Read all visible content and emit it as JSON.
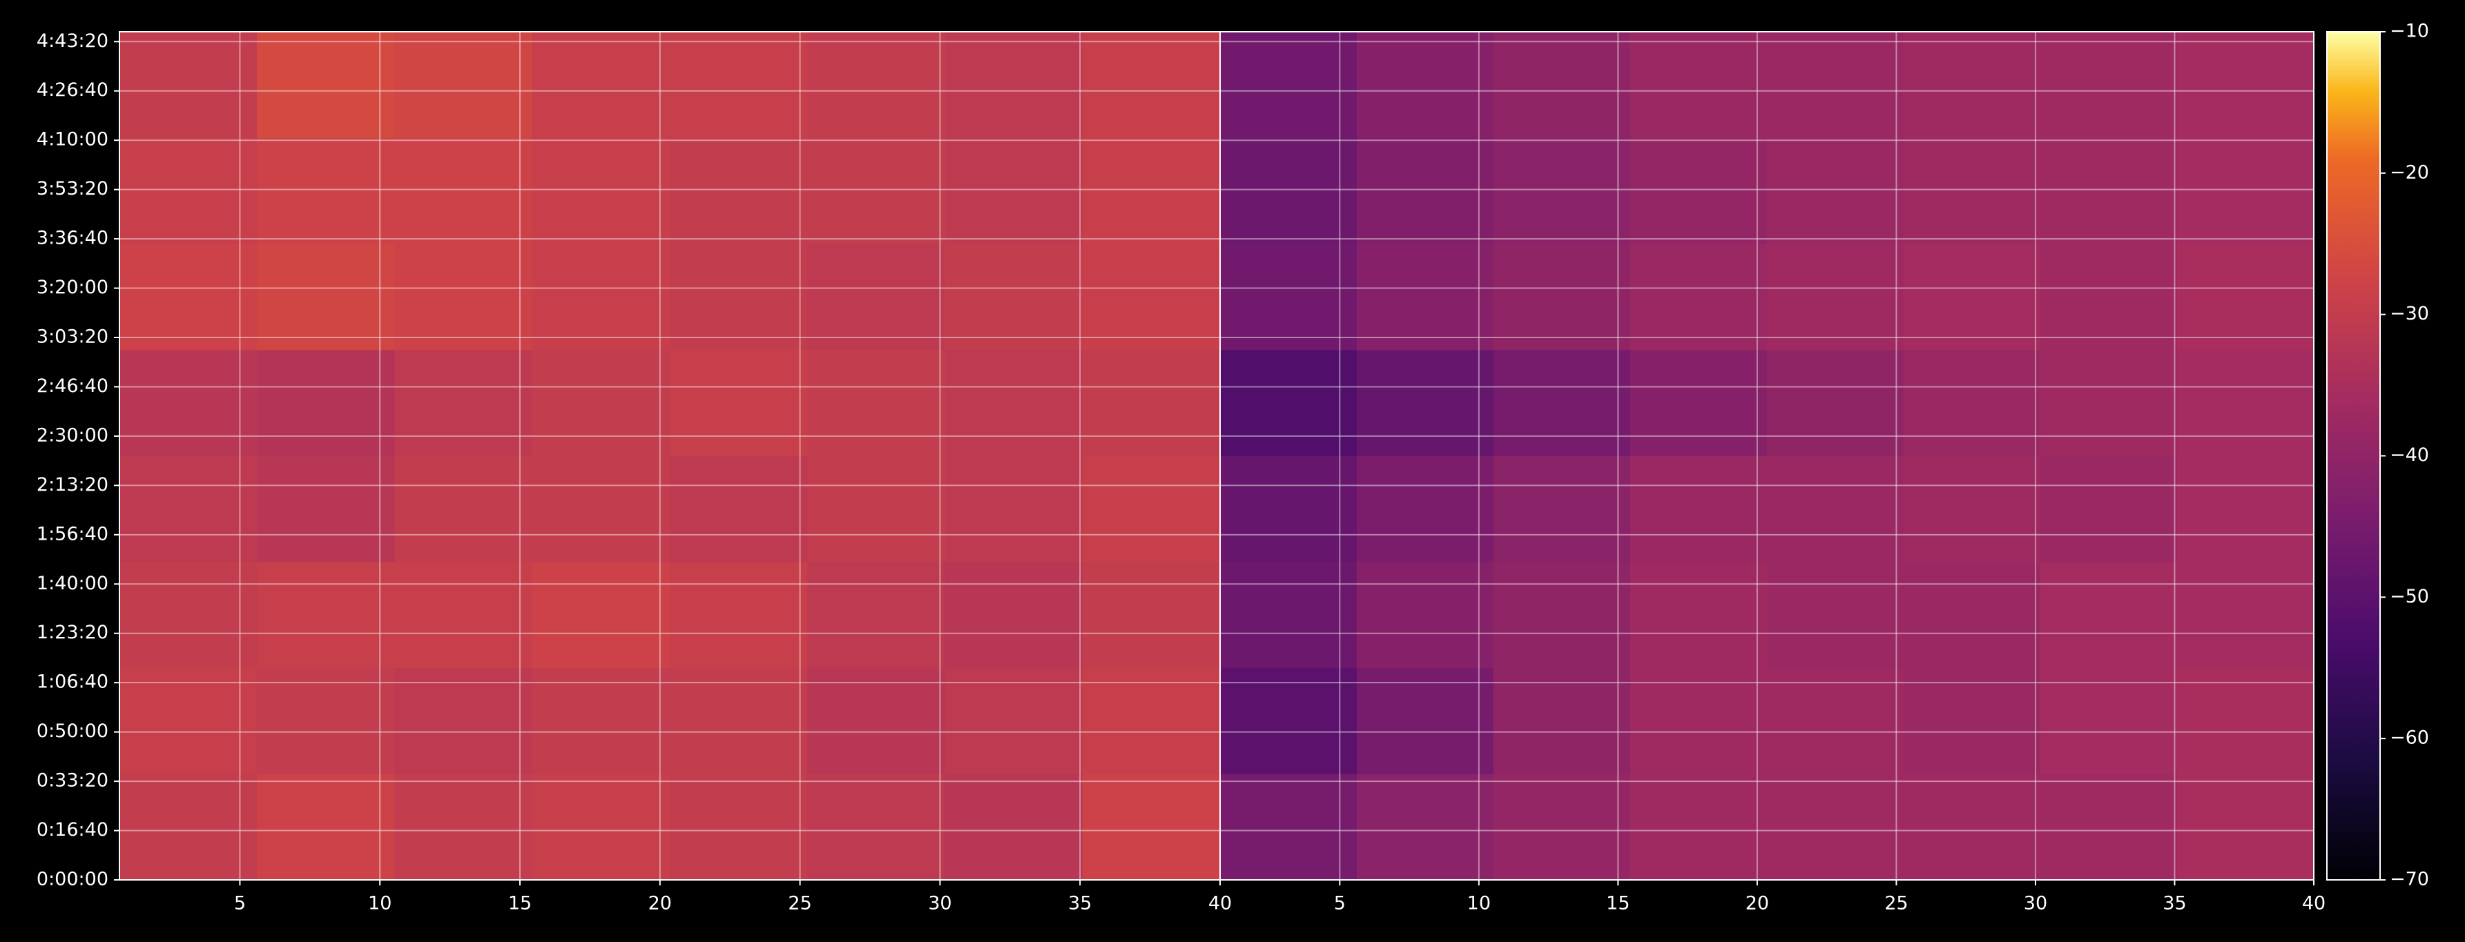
{
  "chart_data": {
    "type": "heatmap",
    "colormap": "inferno",
    "grid": true,
    "ylim": [
      0,
      17200
    ],
    "yticks": [
      {
        "value": 0,
        "label": "0:00:00"
      },
      {
        "value": 1000,
        "label": "0:16:40"
      },
      {
        "value": 2000,
        "label": "0:33:20"
      },
      {
        "value": 3000,
        "label": "0:50:00"
      },
      {
        "value": 4000,
        "label": "1:06:40"
      },
      {
        "value": 5000,
        "label": "1:23:20"
      },
      {
        "value": 6000,
        "label": "1:40:00"
      },
      {
        "value": 7000,
        "label": "1:56:40"
      },
      {
        "value": 8000,
        "label": "2:13:20"
      },
      {
        "value": 9000,
        "label": "2:30:00"
      },
      {
        "value": 10000,
        "label": "2:46:40"
      },
      {
        "value": 11000,
        "label": "3:03:20"
      },
      {
        "value": 12000,
        "label": "3:20:00"
      },
      {
        "value": 13000,
        "label": "3:36:40"
      },
      {
        "value": 14000,
        "label": "3:53:20"
      },
      {
        "value": 15000,
        "label": "4:10:00"
      },
      {
        "value": 16000,
        "label": "4:26:40"
      },
      {
        "value": 17000,
        "label": "4:43:20"
      }
    ],
    "panels": [
      {
        "xlim": [
          0.7,
          40
        ],
        "xticks": [
          5,
          10,
          15,
          20,
          25,
          30,
          35,
          40
        ],
        "values": [
          [
            -30,
            -28,
            -30,
            -29,
            -30,
            -31,
            -32,
            -28
          ],
          [
            -29,
            -30,
            -31,
            -30,
            -30,
            -32,
            -31,
            -29
          ],
          [
            -30,
            -29,
            -29,
            -28,
            -29,
            -31,
            -32,
            -30
          ],
          [
            -31,
            -32,
            -30,
            -30,
            -31,
            -30,
            -31,
            -29
          ],
          [
            -32,
            -33,
            -31,
            -30,
            -29,
            -30,
            -31,
            -30
          ],
          [
            -28,
            -27,
            -28,
            -29,
            -30,
            -31,
            -30,
            -29
          ],
          [
            -29,
            -28,
            -28,
            -29,
            -30,
            -30,
            -31,
            -29
          ],
          [
            -30,
            -26,
            -27,
            -29,
            -29,
            -30,
            -31,
            -29
          ]
        ]
      },
      {
        "xlim": [
          0.7,
          40
        ],
        "xticks": [
          5,
          10,
          15,
          20,
          25,
          30,
          35,
          40
        ],
        "values": [
          [
            -45,
            -41,
            -39,
            -37,
            -37,
            -37,
            -37,
            -35
          ],
          [
            -50,
            -45,
            -40,
            -37,
            -37,
            -38,
            -36,
            -35
          ],
          [
            -47,
            -42,
            -40,
            -37,
            -38,
            -38,
            -36,
            -36
          ],
          [
            -48,
            -44,
            -41,
            -38,
            -38,
            -37,
            -38,
            -36
          ],
          [
            -52,
            -48,
            -45,
            -42,
            -40,
            -38,
            -37,
            -36
          ],
          [
            -46,
            -42,
            -40,
            -38,
            -37,
            -36,
            -37,
            -35
          ],
          [
            -47,
            -43,
            -41,
            -39,
            -38,
            -37,
            -37,
            -36
          ],
          [
            -46,
            -42,
            -40,
            -38,
            -38,
            -37,
            -37,
            -36
          ]
        ]
      }
    ],
    "colorbar": {
      "lim": [
        -70,
        -10
      ],
      "ticks": [
        {
          "value": -70,
          "label": "−70"
        },
        {
          "value": -60,
          "label": "−60"
        },
        {
          "value": -50,
          "label": "−50"
        },
        {
          "value": -40,
          "label": "−40"
        },
        {
          "value": -30,
          "label": "−30"
        },
        {
          "value": -20,
          "label": "−20"
        },
        {
          "value": -10,
          "label": "−10"
        }
      ]
    }
  }
}
